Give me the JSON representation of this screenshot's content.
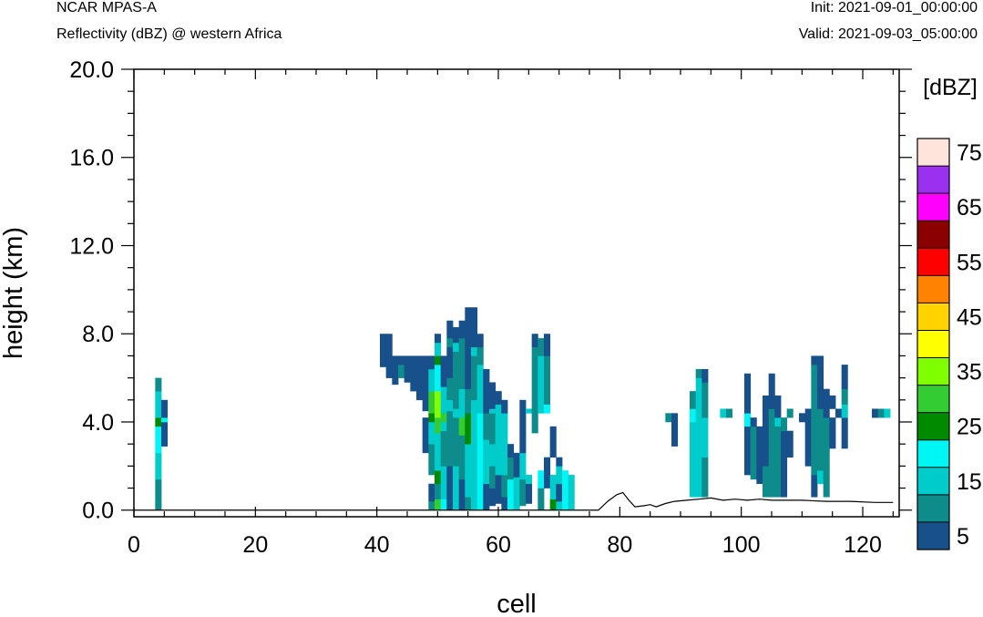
{
  "header": {
    "model": "NCAR MPAS-A",
    "field": "Reflectivity (dBZ) @ western Africa",
    "init": "Init: 2021-09-01_00:00:00",
    "valid": "Valid: 2021-09-03_05:00:00"
  },
  "chart_data": {
    "type": "heatmap",
    "title": "Reflectivity (dBZ) @ western Africa",
    "xlabel": "cell",
    "ylabel": "height (km)",
    "xlim": [
      0,
      126
    ],
    "ylim": [
      -0.3,
      20
    ],
    "x_ticks": [
      0,
      20,
      40,
      60,
      80,
      100,
      120
    ],
    "x_tick_labels": [
      "0",
      "20",
      "40",
      "60",
      "80",
      "100",
      "120"
    ],
    "y_ticks": [
      0,
      4,
      8,
      12,
      16,
      20
    ],
    "y_tick_labels": [
      "0.0",
      "4.0",
      "8.0",
      "12.0",
      "16.0",
      "20.0"
    ],
    "grid": false,
    "colorbar": {
      "title": "[dBZ]",
      "levels": [
        5,
        10,
        15,
        20,
        25,
        30,
        35,
        40,
        45,
        50,
        55,
        60,
        65,
        70,
        75
      ],
      "labels": [
        "5",
        "15",
        "25",
        "35",
        "45",
        "55",
        "65",
        "75"
      ],
      "colors": [
        "#17508a",
        "#0e8c8c",
        "#00cccc",
        "#00f5f5",
        "#008a00",
        "#33cc33",
        "#80ff00",
        "#ffff00",
        "#ffd200",
        "#ff8200",
        "#ff0000",
        "#8b0000",
        "#ff00ff",
        "#9b30f0",
        "#ffe4dc"
      ]
    },
    "terrain": [
      [
        76.5,
        0.0
      ],
      [
        78,
        0.4
      ],
      [
        79.5,
        0.7
      ],
      [
        80.5,
        0.8
      ],
      [
        81.5,
        0.45
      ],
      [
        82.5,
        0.15
      ],
      [
        84,
        0.2
      ],
      [
        85,
        0.25
      ],
      [
        86,
        0.15
      ],
      [
        87.5,
        0.3
      ],
      [
        89,
        0.4
      ],
      [
        91,
        0.45
      ],
      [
        93,
        0.5
      ],
      [
        95,
        0.55
      ],
      [
        97,
        0.45
      ],
      [
        99,
        0.5
      ],
      [
        101,
        0.45
      ],
      [
        103,
        0.5
      ],
      [
        105,
        0.45
      ],
      [
        107,
        0.45
      ],
      [
        110,
        0.45
      ],
      [
        114,
        0.4
      ],
      [
        118,
        0.4
      ],
      [
        122,
        0.35
      ],
      [
        125,
        0.35
      ]
    ],
    "columns": [
      {
        "x": 4,
        "segs": [
          [
            0,
            1.4,
            10
          ],
          [
            1.4,
            2.6,
            15
          ],
          [
            2.6,
            3.8,
            20
          ],
          [
            3.8,
            4.2,
            25
          ],
          [
            4.2,
            5.4,
            15
          ],
          [
            5.4,
            6,
            10
          ]
        ]
      },
      {
        "x": 5,
        "segs": [
          [
            2.9,
            4,
            5
          ],
          [
            4,
            4.2,
            20
          ],
          [
            4.2,
            5,
            5
          ]
        ]
      },
      {
        "x": 41,
        "segs": [
          [
            6.5,
            8,
            5
          ]
        ]
      },
      {
        "x": 42,
        "segs": [
          [
            6,
            8,
            5
          ]
        ]
      },
      {
        "x": 43,
        "segs": [
          [
            5.7,
            7,
            5
          ]
        ]
      },
      {
        "x": 44,
        "segs": [
          [
            6,
            6.6,
            10
          ],
          [
            6.6,
            7,
            5
          ]
        ]
      },
      {
        "x": 45,
        "segs": [
          [
            5.8,
            7,
            5
          ]
        ]
      },
      {
        "x": 46,
        "segs": [
          [
            5.4,
            7,
            5
          ]
        ]
      },
      {
        "x": 47,
        "segs": [
          [
            5,
            7,
            5
          ]
        ]
      },
      {
        "x": 48,
        "segs": [
          [
            2.6,
            4.2,
            5
          ],
          [
            4.5,
            7,
            5
          ]
        ]
      },
      {
        "x": 49,
        "segs": [
          [
            0,
            0.4,
            10
          ],
          [
            0.4,
            1.2,
            5
          ],
          [
            1.6,
            3,
            10
          ],
          [
            3,
            4,
            15
          ],
          [
            4,
            4.4,
            25
          ],
          [
            4.4,
            5.4,
            30
          ],
          [
            5.4,
            6.4,
            15
          ],
          [
            6.4,
            7,
            5
          ]
        ]
      },
      {
        "x": 50,
        "segs": [
          [
            0,
            0.5,
            30
          ],
          [
            0.5,
            1.2,
            10
          ],
          [
            1.2,
            1.8,
            25
          ],
          [
            1.8,
            3.5,
            15
          ],
          [
            3.5,
            4.2,
            30
          ],
          [
            4.2,
            5.4,
            35
          ],
          [
            5.4,
            6.6,
            20
          ],
          [
            6.6,
            7,
            25
          ],
          [
            7,
            7.6,
            15
          ],
          [
            7.6,
            8,
            5
          ]
        ]
      },
      {
        "x": 51,
        "segs": [
          [
            0,
            0.5,
            20
          ],
          [
            0.5,
            2,
            15
          ],
          [
            2,
            3.6,
            10
          ],
          [
            3.6,
            4,
            15
          ],
          [
            4,
            4.4,
            30
          ],
          [
            4.4,
            5.6,
            15
          ],
          [
            5.6,
            7,
            5
          ]
        ]
      },
      {
        "x": 52,
        "segs": [
          [
            0,
            2,
            5
          ],
          [
            2,
            4.5,
            10
          ],
          [
            4.5,
            5,
            15
          ],
          [
            5,
            6,
            10
          ],
          [
            6,
            7.4,
            5
          ],
          [
            7.4,
            7.8,
            10
          ],
          [
            7.8,
            8.6,
            5
          ]
        ]
      },
      {
        "x": 53,
        "segs": [
          [
            0,
            2,
            15
          ],
          [
            2,
            4.2,
            10
          ],
          [
            4.2,
            4.6,
            15
          ],
          [
            4.6,
            7.2,
            10
          ],
          [
            7.2,
            7.6,
            15
          ],
          [
            7.6,
            8.3,
            5
          ]
        ]
      },
      {
        "x": 54,
        "segs": [
          [
            0,
            1.4,
            5
          ],
          [
            1.4,
            3.4,
            10
          ],
          [
            3.4,
            4.2,
            30
          ],
          [
            4.2,
            5.5,
            15
          ],
          [
            5.5,
            7.8,
            10
          ],
          [
            7.8,
            8.6,
            5
          ]
        ]
      },
      {
        "x": 55,
        "segs": [
          [
            0,
            0.6,
            10
          ],
          [
            0.6,
            3,
            15
          ],
          [
            3,
            4,
            25
          ],
          [
            4,
            4.4,
            25
          ],
          [
            4.4,
            5.5,
            10
          ],
          [
            5.5,
            7.7,
            5
          ],
          [
            7.7,
            9.2,
            5
          ]
        ]
      },
      {
        "x": 56,
        "segs": [
          [
            0,
            4.4,
            15
          ],
          [
            4.4,
            5,
            15
          ],
          [
            5,
            7,
            10
          ],
          [
            7,
            7.4,
            15
          ],
          [
            7.4,
            9.2,
            5
          ]
        ]
      },
      {
        "x": 57,
        "segs": [
          [
            0,
            4.4,
            20
          ],
          [
            4.4,
            6.6,
            15
          ],
          [
            6.6,
            7.4,
            10
          ],
          [
            7.4,
            8,
            5
          ]
        ]
      },
      {
        "x": 58,
        "segs": [
          [
            0,
            1.2,
            5
          ],
          [
            1.2,
            3.2,
            15
          ],
          [
            3.2,
            4.4,
            10
          ],
          [
            4.4,
            6.4,
            5
          ]
        ]
      },
      {
        "x": 59,
        "segs": [
          [
            0.2,
            1,
            5
          ],
          [
            1,
            2,
            10
          ],
          [
            2,
            3,
            15
          ],
          [
            3,
            4.4,
            10
          ],
          [
            4.4,
            4.6,
            15
          ],
          [
            4.6,
            5.8,
            5
          ]
        ]
      },
      {
        "x": 60,
        "segs": [
          [
            0.3,
            1.6,
            5
          ],
          [
            1.6,
            4.8,
            15
          ],
          [
            4.8,
            5.4,
            5
          ]
        ]
      },
      {
        "x": 61,
        "segs": [
          [
            0,
            0.6,
            5
          ],
          [
            0.6,
            1.6,
            10
          ],
          [
            1.6,
            4.4,
            15
          ],
          [
            4.4,
            5,
            5
          ]
        ]
      },
      {
        "x": 62,
        "segs": [
          [
            0,
            1.4,
            20
          ],
          [
            1.4,
            2.4,
            10
          ],
          [
            2.4,
            3,
            5
          ]
        ]
      },
      {
        "x": 63,
        "segs": [
          [
            0,
            1.5,
            15
          ],
          [
            1.5,
            2.6,
            5
          ]
        ]
      },
      {
        "x": 64,
        "segs": [
          [
            0.2,
            1.4,
            10
          ],
          [
            1.4,
            2.6,
            15
          ],
          [
            2.6,
            3.6,
            5
          ],
          [
            3.6,
            5,
            5
          ]
        ]
      },
      {
        "x": 65,
        "segs": [
          [
            0.3,
            1.2,
            5
          ],
          [
            1.2,
            1.6,
            15
          ],
          [
            4.4,
            4.6,
            15
          ]
        ]
      },
      {
        "x": 66,
        "segs": [
          [
            3.5,
            4,
            10
          ],
          [
            4,
            7.4,
            10
          ],
          [
            7.4,
            8,
            5
          ]
        ]
      },
      {
        "x": 67,
        "segs": [
          [
            0,
            1,
            10
          ],
          [
            1,
            1.8,
            20
          ],
          [
            4.4,
            7,
            15
          ],
          [
            7,
            7.8,
            10
          ]
        ]
      },
      {
        "x": 68,
        "segs": [
          [
            1,
            2.4,
            5
          ],
          [
            4.4,
            4.8,
            20
          ],
          [
            4.8,
            7,
            10
          ],
          [
            7,
            8,
            5
          ]
        ]
      },
      {
        "x": 69,
        "segs": [
          [
            2.4,
            3.8,
            5
          ],
          [
            1.2,
            1.6,
            15
          ],
          [
            0,
            0.5,
            25
          ],
          [
            0.5,
            1.2,
            15
          ]
        ]
      },
      {
        "x": 70,
        "segs": [
          [
            0,
            0.4,
            15
          ],
          [
            0.4,
            1.2,
            5
          ],
          [
            1.2,
            2,
            15
          ],
          [
            2,
            2.4,
            5
          ]
        ]
      },
      {
        "x": 71,
        "segs": [
          [
            0,
            1.8,
            20
          ]
        ]
      },
      {
        "x": 72,
        "segs": [
          [
            0,
            1.6,
            15
          ]
        ]
      },
      {
        "x": 88,
        "segs": [
          [
            4,
            4.4,
            10
          ]
        ]
      },
      {
        "x": 89,
        "segs": [
          [
            2.9,
            4.4,
            5
          ]
        ]
      },
      {
        "x": 92,
        "segs": [
          [
            0.6,
            4,
            15
          ],
          [
            4,
            4.6,
            20
          ],
          [
            4.6,
            5.4,
            10
          ]
        ]
      },
      {
        "x": 93,
        "segs": [
          [
            0.6,
            6,
            15
          ],
          [
            6,
            6.4,
            10
          ]
        ]
      },
      {
        "x": 94,
        "segs": [
          [
            0.6,
            2.4,
            10
          ],
          [
            2.4,
            4.2,
            15
          ],
          [
            4.2,
            5.8,
            10
          ],
          [
            5.8,
            6.4,
            5
          ]
        ]
      },
      {
        "x": 97,
        "segs": [
          [
            4.2,
            4.6,
            15
          ]
        ]
      },
      {
        "x": 98,
        "segs": [
          [
            4.2,
            4.6,
            10
          ]
        ]
      },
      {
        "x": 101,
        "segs": [
          [
            1.6,
            3.8,
            5
          ],
          [
            3.8,
            4.4,
            20
          ],
          [
            4.4,
            6.2,
            5
          ]
        ]
      },
      {
        "x": 102,
        "segs": [
          [
            1.4,
            3.8,
            10
          ],
          [
            3.8,
            4.2,
            5
          ]
        ]
      },
      {
        "x": 103,
        "segs": [
          [
            1.2,
            3.8,
            5
          ]
        ]
      },
      {
        "x": 104,
        "segs": [
          [
            0.6,
            2,
            10
          ],
          [
            2,
            4.6,
            5
          ],
          [
            4.6,
            5.2,
            5
          ]
        ]
      },
      {
        "x": 105,
        "segs": [
          [
            0.6,
            4.6,
            10
          ],
          [
            4.6,
            6.2,
            5
          ]
        ]
      },
      {
        "x": 106,
        "segs": [
          [
            0.6,
            3.8,
            10
          ],
          [
            3.8,
            4.2,
            15
          ],
          [
            4.2,
            5.2,
            5
          ]
        ]
      },
      {
        "x": 107,
        "segs": [
          [
            0.6,
            3.6,
            5
          ],
          [
            3.6,
            4.2,
            10
          ]
        ]
      },
      {
        "x": 108,
        "segs": [
          [
            2.4,
            3.6,
            5
          ],
          [
            4.2,
            4.6,
            10
          ]
        ]
      },
      {
        "x": 110,
        "segs": [
          [
            4,
            4.4,
            5
          ]
        ]
      },
      {
        "x": 111,
        "segs": [
          [
            2,
            4.6,
            5
          ]
        ]
      },
      {
        "x": 112,
        "segs": [
          [
            0.6,
            1.6,
            5
          ],
          [
            1.6,
            4.4,
            10
          ],
          [
            4.4,
            6.6,
            10
          ],
          [
            6.6,
            7,
            5
          ]
        ]
      },
      {
        "x": 113,
        "segs": [
          [
            1.2,
            1.8,
            15
          ],
          [
            1.8,
            4.6,
            10
          ],
          [
            4.6,
            7,
            5
          ]
        ]
      },
      {
        "x": 114,
        "segs": [
          [
            0.6,
            4.2,
            10
          ],
          [
            4.2,
            4.6,
            5
          ],
          [
            4.6,
            5.5,
            5
          ]
        ]
      },
      {
        "x": 115,
        "segs": [
          [
            2.8,
            4.2,
            5
          ],
          [
            4.6,
            5.2,
            5
          ]
        ]
      },
      {
        "x": 116,
        "segs": [
          [
            4.2,
            4.6,
            5
          ]
        ]
      },
      {
        "x": 117,
        "segs": [
          [
            2.8,
            4.2,
            5
          ],
          [
            4.2,
            4.8,
            15
          ],
          [
            4.8,
            5.5,
            10
          ],
          [
            5.5,
            6.6,
            5
          ]
        ]
      },
      {
        "x": 122,
        "segs": [
          [
            4.2,
            4.6,
            5
          ]
        ]
      },
      {
        "x": 123,
        "segs": [
          [
            4.2,
            4.6,
            10
          ]
        ]
      },
      {
        "x": 124,
        "segs": [
          [
            4.2,
            4.6,
            15
          ]
        ]
      }
    ]
  }
}
